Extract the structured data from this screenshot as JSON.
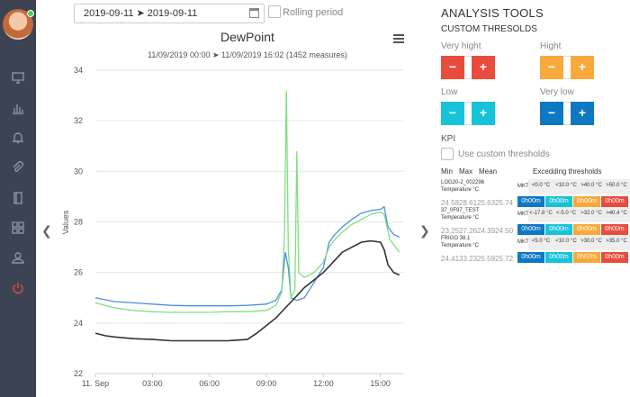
{
  "toolbar": {
    "date_range": "2019-09-11 ➤ 2019-09-11",
    "rolling_label": "Rolling period"
  },
  "chart_header": {
    "title": "DewPoint",
    "subtitle": "11/09/2019 00:00 ➤ 11/09/2019 16:02 (1452 measures)"
  },
  "sidebar": {
    "icons": [
      "monitor-icon",
      "bar-chart-icon",
      "bell-icon",
      "paperclip-icon",
      "book-icon",
      "grid-icon",
      "user-icon",
      "power-icon"
    ]
  },
  "tools": {
    "title": "ANALYSIS TOOLS",
    "subtitle": "CUSTOM THRESOLDS",
    "thresholds": [
      {
        "label": "Very hight",
        "color": "#e84c3d"
      },
      {
        "label": "Hight",
        "color": "#f8a93b"
      },
      {
        "label": "Low",
        "color": "#17c3d9"
      },
      {
        "label": "Very low",
        "color": "#0e78c2"
      }
    ],
    "minus_glyph": "−",
    "plus_glyph": "+",
    "kpi_label": "KPI",
    "custom_label": "Use custom thresholds",
    "headers": {
      "min": "Min",
      "max": "Max",
      "mean": "Mean",
      "exceeding": "Excedding thresholds"
    },
    "rows": [
      {
        "name1": "LOG20-2_002296",
        "name2": "Temperature °C",
        "mkt": "MKT",
        "thresholds": [
          "<0.0 °C",
          "<10.0 °C",
          ">40.0 °C",
          ">50.0 °C"
        ],
        "values": "24.5828.6125.6325.74",
        "badges": [
          "0h00m",
          "0h00m",
          "0h00m",
          "0h00m"
        ]
      },
      {
        "name1": "37_0F97_TEST",
        "name2": "Temperature °C",
        "mkt": "MKT",
        "thresholds": [
          "<-17.8 °C",
          "<-5.0 °C",
          ">32.0 °C",
          ">40.4 °C"
        ],
        "values": "23.2527.2624.3924.50",
        "badges": [
          "0h00m",
          "0h00m",
          "0h00m",
          "0h00m"
        ]
      },
      {
        "name1": "FRIGO 38.1",
        "name2": "Temperature °C",
        "mkt": "MKT",
        "thresholds": [
          "<5.0 °C",
          "<10.0 °C",
          ">30.0 °C",
          ">35.0 °C"
        ],
        "values": "24.4133.2325.5925.72",
        "badges": [
          "0h00m",
          "0h00m",
          "0h07m",
          "0h00m"
        ]
      }
    ]
  },
  "chart_data": {
    "type": "line",
    "title": "DewPoint",
    "ylabel": "Values",
    "xlabel": "",
    "ylim": [
      22,
      34
    ],
    "xlim": [
      0,
      16.2
    ],
    "x_ticks": [
      {
        "v": 0,
        "label": "11. Sep"
      },
      {
        "v": 3,
        "label": "03:00"
      },
      {
        "v": 6,
        "label": "06:00"
      },
      {
        "v": 9,
        "label": "09:00"
      },
      {
        "v": 12,
        "label": "12:00"
      },
      {
        "v": 15,
        "label": "15:00"
      }
    ],
    "y_ticks": [
      22,
      24,
      26,
      28,
      30,
      32,
      34
    ],
    "grid": true,
    "series": [
      {
        "color": "#4a90e2",
        "x": [
          0,
          1,
          2,
          3,
          4,
          5,
          6,
          7,
          8,
          9,
          9.5,
          9.8,
          10,
          10.15,
          10.3,
          10.6,
          11,
          11.5,
          12,
          12.3,
          12.6,
          13,
          13.5,
          14,
          14.5,
          15,
          15.2,
          15.4,
          15.7,
          16
        ],
        "y": [
          25.0,
          24.85,
          24.8,
          24.75,
          24.7,
          24.68,
          24.68,
          24.68,
          24.7,
          24.75,
          24.9,
          25.3,
          26.8,
          26.2,
          25.0,
          24.9,
          25.0,
          25.6,
          26.2,
          27.2,
          27.5,
          27.8,
          28.1,
          28.35,
          28.45,
          28.5,
          28.6,
          27.8,
          27.5,
          27.4
        ]
      },
      {
        "color": "#7ee07e",
        "x": [
          0,
          1,
          2,
          3,
          4,
          5,
          6,
          7,
          8,
          9,
          9.5,
          9.8,
          9.95,
          10.05,
          10.15,
          10.3,
          10.5,
          10.6,
          10.7,
          10.85,
          11,
          11.5,
          12,
          12.3,
          12.6,
          13,
          13.5,
          14,
          14.5,
          15,
          15.2,
          15.5,
          15.8,
          16
        ],
        "y": [
          24.8,
          24.6,
          24.5,
          24.45,
          24.42,
          24.42,
          24.42,
          24.45,
          24.45,
          24.5,
          24.7,
          25.2,
          27.5,
          33.2,
          27.0,
          25.0,
          25.3,
          30.8,
          26.0,
          25.9,
          25.8,
          26.0,
          26.4,
          27.0,
          27.3,
          27.6,
          27.9,
          28.1,
          28.3,
          28.4,
          28.3,
          27.3,
          27.0,
          26.8
        ]
      },
      {
        "color": "#333333",
        "x": [
          0,
          0.5,
          1,
          2,
          3,
          4,
          5,
          6,
          7,
          8,
          8.5,
          9,
          9.5,
          10,
          10.5,
          11,
          11.5,
          12,
          12.5,
          13,
          13.5,
          14,
          14.5,
          15,
          15.2,
          15.4,
          15.7,
          16
        ],
        "y": [
          23.6,
          23.5,
          23.45,
          23.38,
          23.35,
          23.3,
          23.3,
          23.3,
          23.3,
          23.35,
          23.6,
          23.9,
          24.2,
          24.6,
          25.0,
          25.4,
          25.7,
          26.0,
          26.4,
          26.8,
          27.0,
          27.2,
          27.25,
          27.2,
          26.9,
          26.3,
          26.0,
          25.9
        ]
      }
    ]
  }
}
